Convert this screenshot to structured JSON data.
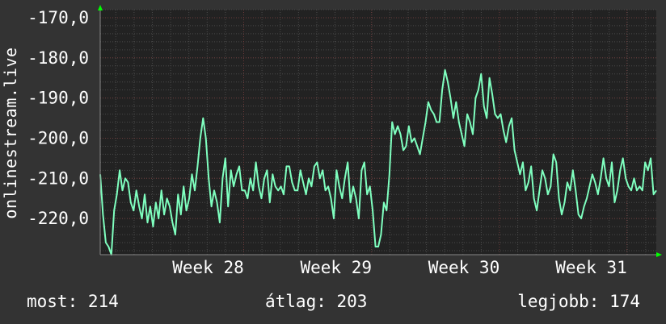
{
  "chart_data": {
    "type": "line",
    "title": "",
    "ylabel": "onlinestream.live",
    "xlabel": "",
    "ylim": [
      -229,
      -168
    ],
    "xlim": [
      0,
      100
    ],
    "yticks": [
      {
        "value": -170,
        "label": "-170,0"
      },
      {
        "value": -180,
        "label": "-180,0"
      },
      {
        "value": -190,
        "label": "-190,0"
      },
      {
        "value": -200,
        "label": "-200,0"
      },
      {
        "value": -210,
        "label": "-210,0"
      },
      {
        "value": -220,
        "label": "-220,0"
      }
    ],
    "xticks": [
      {
        "x": 25.8,
        "label": "Week 28"
      },
      {
        "x": 48.8,
        "label": "Week 29"
      },
      {
        "x": 71.8,
        "label": "Week 30"
      },
      {
        "x": 94.7,
        "label": "Week 31"
      }
    ],
    "grid": true,
    "series": [
      {
        "color": "#7fffbf",
        "x": [
          0,
          0.5,
          1,
          1.5,
          2,
          2.5,
          3,
          3.5,
          4,
          4.5,
          5,
          5.5,
          6,
          6.5,
          7,
          7.5,
          8,
          8.5,
          9,
          9.5,
          10,
          10.5,
          11,
          11.5,
          12,
          12.5,
          13,
          13.5,
          14,
          14.5,
          15,
          15.5,
          16,
          16.5,
          17,
          17.5,
          18,
          18.5,
          19,
          19.5,
          20,
          20.5,
          21,
          21.5,
          22,
          22.5,
          23,
          23.5,
          24,
          24.5,
          25,
          25.5,
          26,
          26.5,
          27,
          27.5,
          28,
          28.5,
          29,
          29.5,
          30,
          30.5,
          31,
          31.5,
          32,
          32.5,
          33,
          33.5,
          34,
          34.5,
          35,
          35.5,
          36,
          36.5,
          37,
          37.5,
          38,
          38.5,
          39,
          39.5,
          40,
          40.5,
          41,
          41.5,
          42,
          42.5,
          43,
          43.5,
          44,
          44.5,
          45,
          45.5,
          46,
          46.5,
          47,
          47.5,
          48,
          48.5,
          49,
          49.5,
          50,
          50.5,
          51,
          51.5,
          52,
          52.5,
          53,
          53.5,
          54,
          54.5,
          55,
          55.5,
          56,
          56.5,
          57,
          57.5,
          58,
          58.5,
          59,
          59.5,
          60,
          60.5,
          61,
          61.5,
          62,
          62.5,
          63,
          63.5,
          64,
          64.5,
          65,
          65.5,
          66,
          66.5,
          67,
          67.5,
          68,
          68.5,
          69,
          69.5,
          70,
          70.5,
          71,
          71.5,
          72,
          72.5,
          73,
          73.5,
          74,
          74.5,
          75,
          75.5,
          76,
          76.5,
          77,
          77.5,
          78,
          78.5,
          79,
          79.5,
          80,
          80.5,
          81,
          81.5,
          82,
          82.5,
          83,
          83.5,
          84,
          84.5,
          85,
          85.5,
          86,
          86.5,
          87,
          87.5,
          88,
          88.5,
          89,
          89.5,
          90,
          90.5,
          91,
          91.5,
          92,
          92.5,
          93,
          93.5,
          94,
          94.5,
          95,
          95.5,
          96,
          96.5,
          97,
          97.5,
          98,
          98.5,
          99,
          99.5,
          100
        ],
        "values": [
          -209,
          -219,
          -226,
          -227,
          -229,
          -218,
          -214,
          -208,
          -213,
          -210,
          -211,
          -216,
          -218,
          -213,
          -217,
          -220,
          -214,
          -221,
          -217,
          -222,
          -216,
          -220,
          -213,
          -219,
          -215,
          -217,
          -221,
          -224,
          -214,
          -219,
          -212,
          -218,
          -215,
          -209,
          -213,
          -207,
          -200,
          -195,
          -200,
          -210,
          -217,
          -213,
          -216,
          -221,
          -210,
          -205,
          -217,
          -208,
          -212,
          -209,
          -207,
          -213,
          -213,
          -215,
          -210,
          -213,
          -206,
          -212,
          -215,
          -210,
          -208,
          -216,
          -209,
          -212,
          -213,
          -212,
          -214,
          -207,
          -207,
          -211,
          -213,
          -213,
          -208,
          -211,
          -214,
          -210,
          -212,
          -207,
          -206,
          -210,
          -208,
          -213,
          -212,
          -215,
          -220,
          -208,
          -212,
          -215,
          -210,
          -206,
          -216,
          -212,
          -215,
          -220,
          -208,
          -206,
          -214,
          -212,
          -218,
          -227,
          -227,
          -224,
          -216,
          -218,
          -209,
          -196,
          -199,
          -197,
          -199,
          -203,
          -202,
          -197,
          -201,
          -200,
          -202,
          -204,
          -200,
          -196,
          -191,
          -193,
          -194,
          -196,
          -196,
          -188,
          -183,
          -186,
          -190,
          -195,
          -191,
          -196,
          -199,
          -202,
          -194,
          -196,
          -199,
          -190,
          -188,
          -184,
          -192,
          -195,
          -185,
          -189,
          -194,
          -195,
          -194,
          -198,
          -201,
          -197,
          -195,
          -203,
          -206,
          -209,
          -206,
          -213,
          -211,
          -207,
          -215,
          -218,
          -213,
          -208,
          -210,
          -214,
          -212,
          -204,
          -206,
          -215,
          -219,
          -216,
          -211,
          -213,
          -208,
          -213,
          -219,
          -220,
          -217,
          -215,
          -212,
          -209,
          -211,
          -214,
          -210,
          -205,
          -210,
          -212,
          -206,
          -216,
          -213,
          -208,
          -205,
          -210,
          -212,
          -213,
          -210,
          -213,
          -212,
          -213,
          -206,
          -208,
          -205,
          -214,
          -213
        ]
      }
    ],
    "arrows": true
  },
  "axis": {
    "y_title": "onlinestream.live"
  },
  "stats": {
    "now_label": "most:",
    "now_value": "214",
    "avg_label": "átlag:",
    "avg_value": "203",
    "max_label": "legjobb:",
    "max_value": "174"
  },
  "colors": {
    "background": "#333333",
    "plot_background": "#222222",
    "grid": "#4a4a4a",
    "major_grid": "#6a3a3a",
    "line": "#7fffbf",
    "arrow": "#00ff00",
    "text": "#ffffff"
  }
}
